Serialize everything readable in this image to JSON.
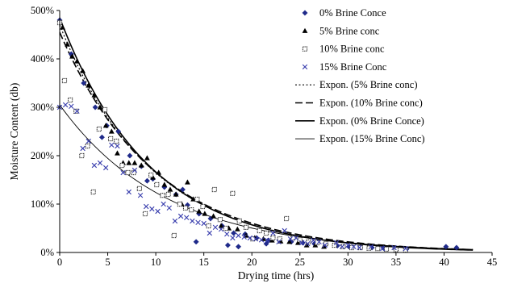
{
  "chart_data": {
    "type": "scatter",
    "xlabel": "Drying time (hrs)",
    "ylabel": "Moisture Content (db)",
    "xlim": [
      0,
      45
    ],
    "ylim": [
      0,
      500
    ],
    "x_ticks": [
      0,
      5,
      10,
      15,
      20,
      25,
      30,
      35,
      40,
      45
    ],
    "x_tick_labels": [
      "0",
      "5",
      "10",
      "15",
      "20",
      "25",
      "30",
      "35",
      "40",
      "45"
    ],
    "y_ticks": [
      0,
      100,
      200,
      300,
      400,
      500
    ],
    "y_tick_labels": [
      "0%",
      "100%",
      "200%",
      "300%",
      "400%",
      "500%"
    ],
    "grid": false,
    "legend_position": "top-right",
    "series": [
      {
        "name": "0% Brine Conce",
        "marker": "diamond",
        "color": "#1f2a8a",
        "points": [
          [
            0,
            480
          ],
          [
            1.2,
            410
          ],
          [
            2.5,
            350
          ],
          [
            3.7,
            300
          ],
          [
            4.9,
            262
          ],
          [
            6.1,
            250
          ],
          [
            7.3,
            200
          ],
          [
            8.5,
            178
          ],
          [
            9.7,
            152
          ],
          [
            10.9,
            135
          ],
          [
            12.1,
            120
          ],
          [
            13.3,
            98
          ],
          [
            14.5,
            80
          ],
          [
            15.7,
            70
          ],
          [
            16.9,
            55
          ],
          [
            18.1,
            40
          ],
          [
            19.3,
            38
          ],
          [
            20.5,
            30
          ],
          [
            21.7,
            25
          ],
          [
            22.9,
            24
          ],
          [
            24.1,
            22
          ],
          [
            25.3,
            20
          ],
          [
            26.5,
            18
          ],
          [
            27.7,
            16
          ],
          [
            28.9,
            14
          ],
          [
            30.1,
            12
          ],
          [
            31.3,
            11
          ],
          [
            32.5,
            10
          ],
          [
            33.7,
            9
          ],
          [
            34.9,
            8
          ],
          [
            36.1,
            7
          ],
          [
            40.2,
            12
          ],
          [
            41.3,
            10
          ],
          [
            4.4,
            238
          ],
          [
            9.1,
            148
          ],
          [
            12.8,
            130
          ],
          [
            14.2,
            22
          ],
          [
            17.5,
            15
          ],
          [
            18.6,
            12
          ],
          [
            21.5,
            18
          ]
        ]
      },
      {
        "name": "5% Brine conc",
        "marker": "triangle",
        "color": "#000000",
        "points": [
          [
            0.3,
            465
          ],
          [
            0.8,
            430
          ],
          [
            1.3,
            405
          ],
          [
            1.8,
            395
          ],
          [
            2.4,
            375
          ],
          [
            3.0,
            345
          ],
          [
            3.6,
            325
          ],
          [
            4.2,
            300
          ],
          [
            4.8,
            262
          ],
          [
            5.4,
            250
          ],
          [
            6.0,
            205
          ],
          [
            6.6,
            185
          ],
          [
            7.2,
            185
          ],
          [
            7.8,
            185
          ],
          [
            8.5,
            180
          ],
          [
            9.1,
            195
          ],
          [
            9.7,
            155
          ],
          [
            10.3,
            165
          ],
          [
            10.9,
            140
          ],
          [
            11.5,
            130
          ],
          [
            12.1,
            120
          ],
          [
            12.7,
            100
          ],
          [
            13.3,
            145
          ],
          [
            13.9,
            110
          ],
          [
            14.5,
            85
          ],
          [
            15.1,
            80
          ],
          [
            16.0,
            75
          ],
          [
            16.8,
            55
          ],
          [
            17.6,
            50
          ],
          [
            18.5,
            48
          ],
          [
            19.4,
            35
          ],
          [
            20.3,
            30
          ],
          [
            21.2,
            28
          ],
          [
            22.1,
            25
          ],
          [
            23.0,
            23
          ],
          [
            23.9,
            22
          ],
          [
            24.8,
            20
          ],
          [
            25.7,
            15
          ],
          [
            26.6,
            15
          ],
          [
            27.5,
            12
          ]
        ]
      },
      {
        "name": "10% Brine conc",
        "marker": "square-open",
        "color": "#222222",
        "points": [
          [
            0,
            475
          ],
          [
            0.5,
            355
          ],
          [
            1.1,
            315
          ],
          [
            1.7,
            292
          ],
          [
            2.3,
            200
          ],
          [
            2.9,
            220
          ],
          [
            3.5,
            125
          ],
          [
            4.1,
            255
          ],
          [
            4.7,
            295
          ],
          [
            5.3,
            235
          ],
          [
            5.9,
            230
          ],
          [
            6.5,
            180
          ],
          [
            7.1,
            165
          ],
          [
            7.7,
            165
          ],
          [
            8.3,
            132
          ],
          [
            8.9,
            80
          ],
          [
            9.5,
            160
          ],
          [
            10.1,
            140
          ],
          [
            10.7,
            118
          ],
          [
            11.3,
            120
          ],
          [
            11.9,
            35
          ],
          [
            12.5,
            100
          ],
          [
            13.1,
            92
          ],
          [
            13.7,
            88
          ],
          [
            14.3,
            110
          ],
          [
            14.9,
            95
          ],
          [
            15.5,
            55
          ],
          [
            16.1,
            130
          ],
          [
            16.7,
            68
          ],
          [
            17.3,
            50
          ],
          [
            18.0,
            122
          ],
          [
            18.7,
            65
          ],
          [
            19.4,
            52
          ],
          [
            20.1,
            28
          ],
          [
            20.8,
            45
          ],
          [
            21.5,
            40
          ],
          [
            22.2,
            30
          ],
          [
            22.9,
            28
          ],
          [
            23.6,
            70
          ],
          [
            24.3,
            30
          ],
          [
            25.0,
            26
          ],
          [
            25.9,
            22
          ],
          [
            26.8,
            20
          ],
          [
            27.7,
            18
          ],
          [
            28.6,
            15
          ],
          [
            29.5,
            12
          ],
          [
            30.4,
            10
          ],
          [
            31.3,
            10
          ],
          [
            32.2,
            9
          ],
          [
            33.1,
            8
          ],
          [
            34.0,
            7
          ],
          [
            35.0,
            6
          ],
          [
            36.0,
            5
          ]
        ]
      },
      {
        "name": "15% Brine Conc",
        "marker": "x",
        "color": "#3a3fae",
        "points": [
          [
            0,
            300
          ],
          [
            0.6,
            305
          ],
          [
            1.2,
            302
          ],
          [
            1.8,
            292
          ],
          [
            2.4,
            215
          ],
          [
            3.0,
            230
          ],
          [
            3.6,
            180
          ],
          [
            4.2,
            185
          ],
          [
            4.8,
            175
          ],
          [
            5.4,
            222
          ],
          [
            6.0,
            220
          ],
          [
            6.6,
            165
          ],
          [
            7.2,
            125
          ],
          [
            7.8,
            170
          ],
          [
            8.4,
            118
          ],
          [
            9.0,
            95
          ],
          [
            9.6,
            90
          ],
          [
            10.2,
            85
          ],
          [
            10.8,
            100
          ],
          [
            11.4,
            92
          ],
          [
            12.0,
            65
          ],
          [
            12.6,
            75
          ],
          [
            13.2,
            72
          ],
          [
            13.8,
            65
          ],
          [
            14.4,
            62
          ],
          [
            15.0,
            60
          ],
          [
            15.6,
            40
          ],
          [
            16.2,
            52
          ],
          [
            16.8,
            48
          ],
          [
            17.4,
            38
          ],
          [
            18.0,
            30
          ],
          [
            18.6,
            35
          ],
          [
            19.2,
            32
          ],
          [
            19.8,
            30
          ],
          [
            20.4,
            28
          ],
          [
            21.0,
            26
          ],
          [
            21.6,
            25
          ],
          [
            22.2,
            40
          ],
          [
            22.8,
            22
          ],
          [
            23.4,
            45
          ],
          [
            24.0,
            28
          ],
          [
            24.6,
            30
          ],
          [
            25.2,
            20
          ],
          [
            25.8,
            18
          ],
          [
            26.4,
            25
          ],
          [
            27.0,
            22
          ],
          [
            27.6,
            15
          ],
          [
            28.8,
            20
          ],
          [
            29.4,
            12
          ],
          [
            30.0,
            15
          ],
          [
            30.6,
            12
          ],
          [
            31.2,
            10
          ],
          [
            32.4,
            12
          ],
          [
            33.6,
            8
          ],
          [
            34.8,
            10
          ],
          [
            36.0,
            8
          ]
        ]
      },
      {
        "name": "Expon. (5% Brine conc)",
        "line_style": "dotted",
        "color": "#000000",
        "fit": {
          "a": 470,
          "b": 0.105
        }
      },
      {
        "name": "Expon. (10% Brine conc)",
        "line_style": "dashed",
        "color": "#000000",
        "fit": {
          "a": 455,
          "b": 0.101
        }
      },
      {
        "name": "Expon. (0% Brine Conce)",
        "line_style": "solid-thick",
        "color": "#000000",
        "fit": {
          "a": 485,
          "b": 0.107
        }
      },
      {
        "name": "Expon. (15% Brine Conc)",
        "line_style": "solid-thin",
        "color": "#000000",
        "fit": {
          "a": 305,
          "b": 0.09
        }
      }
    ]
  }
}
